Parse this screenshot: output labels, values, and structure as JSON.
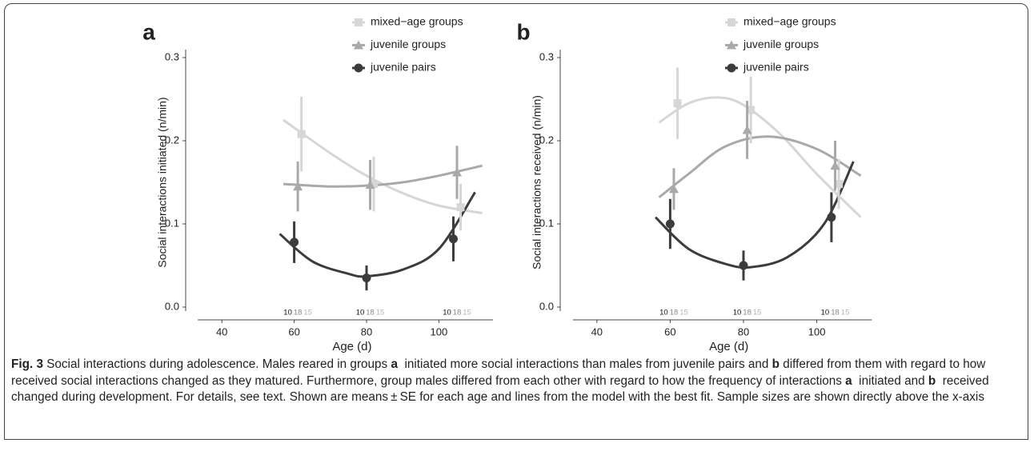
{
  "chart_data": [
    {
      "type": "line",
      "panel": "a",
      "ylabel": "Social interactions initiated (n/min)",
      "xlabel": "Age (d)",
      "xlim": [
        30,
        115
      ],
      "xticks": [
        40,
        60,
        80,
        100
      ],
      "ylim": [
        0,
        0.3
      ],
      "yticks": [
        {
          "value": 0,
          "label": "0.0"
        },
        0.1,
        0.2,
        0.3
      ],
      "series": [
        {
          "name": "mixed−age groups",
          "color": "#d6d6d6",
          "marker": "square",
          "x": [
            62,
            82,
            106
          ],
          "values": [
            0.208,
            0.148,
            0.12
          ],
          "errors": [
            0.045,
            0.033,
            0.028
          ],
          "n": [
            15,
            15,
            15
          ],
          "fit_x": [
            57,
            70,
            80,
            90,
            100,
            112
          ],
          "fit_y": [
            0.225,
            0.185,
            0.158,
            0.137,
            0.122,
            0.113
          ]
        },
        {
          "name": "juvenile groups",
          "color": "#a9a9a9",
          "marker": "triangle",
          "x": [
            61,
            81,
            105
          ],
          "values": [
            0.145,
            0.147,
            0.162
          ],
          "errors": [
            0.03,
            0.03,
            0.032
          ],
          "n": [
            18,
            18,
            18
          ],
          "fit_x": [
            57,
            70,
            80,
            90,
            100,
            112
          ],
          "fit_y": [
            0.148,
            0.145,
            0.146,
            0.15,
            0.158,
            0.17
          ]
        },
        {
          "name": "juvenile pairs",
          "color": "#3c3c3c",
          "marker": "circle",
          "x": [
            60,
            80,
            104
          ],
          "values": [
            0.078,
            0.035,
            0.082
          ],
          "errors": [
            0.025,
            0.015,
            0.027
          ],
          "n": [
            10,
            10,
            10
          ],
          "fit_x": [
            56,
            65,
            75,
            80,
            90,
            100,
            110
          ],
          "fit_y": [
            0.088,
            0.055,
            0.04,
            0.037,
            0.045,
            0.07,
            0.138
          ]
        }
      ]
    },
    {
      "type": "line",
      "panel": "b",
      "ylabel": "Social interactions received (n/min)",
      "xlabel": "Age (d)",
      "xlim": [
        30,
        115
      ],
      "xticks": [
        40,
        60,
        80,
        100
      ],
      "ylim": [
        0,
        0.3
      ],
      "yticks": [
        {
          "value": 0,
          "label": "0.0"
        },
        0.1,
        0.2,
        0.3
      ],
      "series": [
        {
          "name": "mixed−age groups",
          "color": "#d6d6d6",
          "marker": "square",
          "x": [
            62,
            82,
            106
          ],
          "values": [
            0.245,
            0.237,
            0.148
          ],
          "errors": [
            0.043,
            0.04,
            0.03
          ],
          "n": [
            15,
            15,
            15
          ],
          "fit_x": [
            57,
            65,
            73,
            80,
            90,
            100,
            112
          ],
          "fit_y": [
            0.222,
            0.245,
            0.252,
            0.243,
            0.208,
            0.16,
            0.108
          ]
        },
        {
          "name": "juvenile groups",
          "color": "#a9a9a9",
          "marker": "triangle",
          "x": [
            61,
            81,
            105
          ],
          "values": [
            0.142,
            0.213,
            0.17
          ],
          "errors": [
            0.025,
            0.035,
            0.03
          ],
          "n": [
            18,
            18,
            18
          ],
          "fit_x": [
            57,
            65,
            75,
            87,
            100,
            112
          ],
          "fit_y": [
            0.132,
            0.16,
            0.193,
            0.205,
            0.19,
            0.158
          ]
        },
        {
          "name": "juvenile pairs",
          "color": "#3c3c3c",
          "marker": "circle",
          "x": [
            60,
            80,
            104
          ],
          "values": [
            0.1,
            0.05,
            0.108
          ],
          "errors": [
            0.03,
            0.018,
            0.03
          ],
          "n": [
            10,
            10,
            10
          ],
          "fit_x": [
            56,
            65,
            75,
            82,
            92,
            102,
            110
          ],
          "fit_y": [
            0.108,
            0.07,
            0.052,
            0.048,
            0.06,
            0.1,
            0.175
          ]
        }
      ]
    }
  ],
  "caption": [
    {
      "text": "Fig. 3",
      "bold": true
    },
    {
      "text": " Social interactions during adolescence. Males reared in groups "
    },
    {
      "text": "a",
      "bold": true
    },
    {
      "text": "  initiated more social interactions than males from juvenile pairs and "
    },
    {
      "text": "b",
      "bold": true
    },
    {
      "text": " differed from them with regard to how received social interactions changed as they matured. Furthermore, group males differed from each other with regard to how the frequency of interactions "
    },
    {
      "text": "a",
      "bold": true
    },
    {
      "text": "  initiated and "
    },
    {
      "text": "b",
      "bold": true
    },
    {
      "text": "  received changed during development. For details, see text. Shown are means ± SE for each age and lines from the model with the best fit. Sample sizes are shown directly above the x-axis"
    }
  ]
}
